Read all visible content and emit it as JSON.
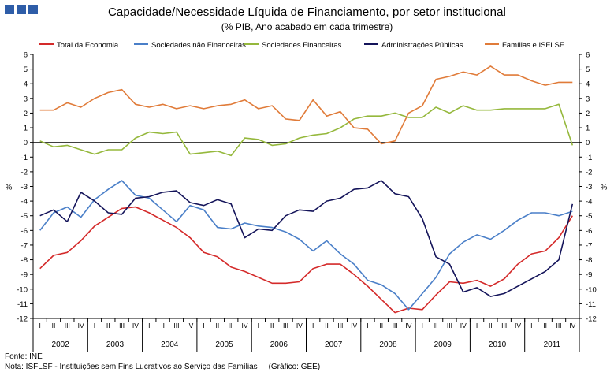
{
  "title": "Capacidade/Necessidade Líquida de Financiamento, por setor institucional",
  "subtitle": "(% PIB, Ano acabado em cada trimestre)",
  "footer": {
    "source": "Fonte: INE",
    "note": "Nota: ISFLSF - Instituições sem Fins Lucrativos ao Serviço das Famílias",
    "credit": "(Gráfico: GEE)"
  },
  "chart_data": {
    "type": "line",
    "title": "Capacidade/Necessidade Líquida de Financiamento, por setor institucional",
    "subtitle": "(% PIB, Ano acabado em cada trimestre)",
    "ylabel": "%",
    "ylabel_right": "%",
    "ylim": [
      -12,
      6
    ],
    "yticks": [
      6,
      5,
      4,
      3,
      2,
      1,
      0,
      -1,
      -2,
      -3,
      -4,
      -5,
      -6,
      -7,
      -8,
      -9,
      -10,
      -11,
      -12
    ],
    "quarter_labels": [
      "I",
      "II",
      "III",
      "IV"
    ],
    "years": [
      "2002",
      "2003",
      "2004",
      "2005",
      "2006",
      "2007",
      "2008",
      "2009",
      "2010",
      "2011"
    ],
    "legend_position": "top",
    "series": [
      {
        "name": "Total da Economia",
        "color": "#d42a2a",
        "values": [
          -8.6,
          -7.7,
          -7.5,
          -6.7,
          -5.7,
          -5.1,
          -4.5,
          -4.4,
          -4.8,
          -5.3,
          -5.8,
          -6.5,
          -7.5,
          -7.8,
          -8.5,
          -8.8,
          -9.2,
          -9.6,
          -9.6,
          -9.5,
          -8.6,
          -8.3,
          -8.3,
          -9.0,
          -9.8,
          -10.7,
          -11.6,
          -11.3,
          -11.4,
          -10.4,
          -9.5,
          -9.6,
          -9.4,
          -9.8,
          -9.3,
          -8.3,
          -7.6,
          -7.4,
          -6.5,
          -5.0
        ]
      },
      {
        "name": "Sociedades não Financeiras",
        "color": "#4a7fc8",
        "values": [
          -6.0,
          -4.8,
          -4.4,
          -5.1,
          -3.9,
          -3.2,
          -2.6,
          -3.6,
          -3.8,
          -4.6,
          -5.4,
          -4.3,
          -4.6,
          -5.8,
          -5.9,
          -5.5,
          -5.7,
          -5.8,
          -6.1,
          -6.6,
          -7.4,
          -6.7,
          -7.6,
          -8.3,
          -9.4,
          -9.7,
          -10.3,
          -11.4,
          -10.3,
          -9.2,
          -7.6,
          -6.8,
          -6.3,
          -6.6,
          -6.0,
          -5.3,
          -4.8,
          -4.8,
          -5.0,
          -4.7
        ]
      },
      {
        "name": "Sociedades Financeiras",
        "color": "#95b83c",
        "values": [
          0.1,
          -0.3,
          -0.2,
          -0.5,
          -0.8,
          -0.5,
          -0.5,
          0.3,
          0.7,
          0.6,
          0.7,
          -0.8,
          -0.7,
          -0.6,
          -0.9,
          0.3,
          0.2,
          -0.2,
          -0.1,
          0.3,
          0.5,
          0.6,
          1.0,
          1.6,
          1.8,
          1.8,
          2.0,
          1.7,
          1.7,
          2.4,
          2.0,
          2.5,
          2.2,
          2.2,
          2.3,
          2.3,
          2.3,
          2.3,
          2.6,
          -0.2
        ]
      },
      {
        "name": "Administrações Públicas",
        "color": "#14145a",
        "values": [
          -5.0,
          -4.6,
          -5.4,
          -3.4,
          -4.0,
          -4.8,
          -4.9,
          -3.8,
          -3.7,
          -3.4,
          -3.3,
          -4.1,
          -4.3,
          -3.9,
          -4.2,
          -6.5,
          -5.9,
          -6.0,
          -5.0,
          -4.6,
          -4.7,
          -4.0,
          -3.8,
          -3.2,
          -3.1,
          -2.6,
          -3.5,
          -3.7,
          -5.2,
          -7.8,
          -8.3,
          -10.2,
          -9.9,
          -10.5,
          -10.3,
          -9.8,
          -9.3,
          -8.8,
          -8.0,
          -4.2
        ]
      },
      {
        "name": "Famílias e ISFLSF",
        "color": "#e07b39",
        "values": [
          2.2,
          2.2,
          2.7,
          2.4,
          3.0,
          3.4,
          3.6,
          2.6,
          2.4,
          2.6,
          2.3,
          2.5,
          2.3,
          2.5,
          2.6,
          2.9,
          2.3,
          2.5,
          1.6,
          1.5,
          2.9,
          1.8,
          2.1,
          1.0,
          0.9,
          -0.1,
          0.1,
          2.0,
          2.5,
          4.3,
          4.5,
          4.8,
          4.6,
          5.2,
          4.6,
          4.6,
          4.2,
          3.9,
          4.1,
          4.1
        ]
      }
    ]
  }
}
